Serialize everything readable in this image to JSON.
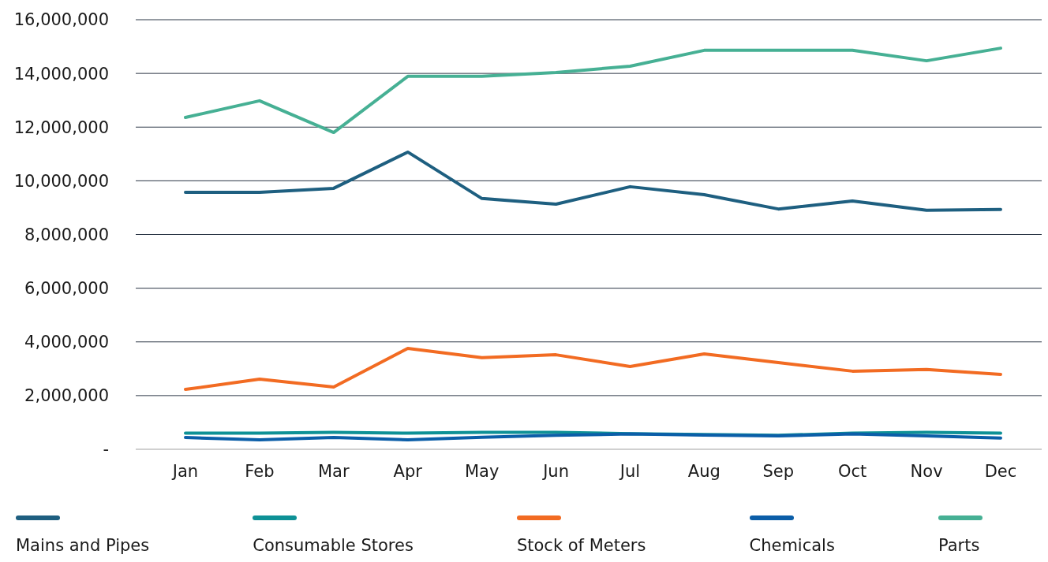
{
  "chart_data": {
    "type": "line",
    "categories": [
      "Jan",
      "Feb",
      "Mar",
      "Apr",
      "May",
      "Jun",
      "Jul",
      "Aug",
      "Sep",
      "Oct",
      "Nov",
      "Dec"
    ],
    "series": [
      {
        "name": "Mains and Pipes",
        "color": "#1e5f80",
        "values": [
          9570000,
          9570000,
          9720000,
          11070000,
          9340000,
          9130000,
          9780000,
          9480000,
          8950000,
          9250000,
          8900000,
          8930000
        ]
      },
      {
        "name": "Consumable Stores",
        "color": "#0e9196",
        "values": [
          600000,
          600000,
          630000,
          600000,
          630000,
          630000,
          580000,
          550000,
          520000,
          600000,
          630000,
          600000
        ]
      },
      {
        "name": "Stock of Meters",
        "color": "#f26b22",
        "values": [
          2230000,
          2610000,
          2320000,
          3760000,
          3410000,
          3520000,
          3080000,
          3550000,
          3230000,
          2910000,
          2970000,
          2790000
        ]
      },
      {
        "name": "Chemicals",
        "color": "#0b5ea8",
        "values": [
          440000,
          350000,
          440000,
          350000,
          450000,
          520000,
          570000,
          530000,
          500000,
          570000,
          500000,
          420000
        ]
      },
      {
        "name": "Parts",
        "color": "#46b094",
        "values": [
          12360000,
          12980000,
          11800000,
          13890000,
          13890000,
          14030000,
          14270000,
          14860000,
          14860000,
          14860000,
          14470000,
          14940000
        ]
      }
    ],
    "ylim": [
      0,
      16000000
    ],
    "yticks": [
      {
        "value": 0,
        "label": "-"
      },
      {
        "value": 2000000,
        "label": "2,000,000"
      },
      {
        "value": 4000000,
        "label": "4,000,000"
      },
      {
        "value": 6000000,
        "label": "6,000,000"
      },
      {
        "value": 8000000,
        "label": "8,000,000"
      },
      {
        "value": 10000000,
        "label": "10,000,000"
      },
      {
        "value": 12000000,
        "label": "12,000,000"
      },
      {
        "value": 14000000,
        "label": "14,000,000"
      },
      {
        "value": 16000000,
        "label": "16,000,000"
      }
    ],
    "grid": "y",
    "legend": "bottom",
    "marker": "none",
    "line_style": "solid"
  }
}
